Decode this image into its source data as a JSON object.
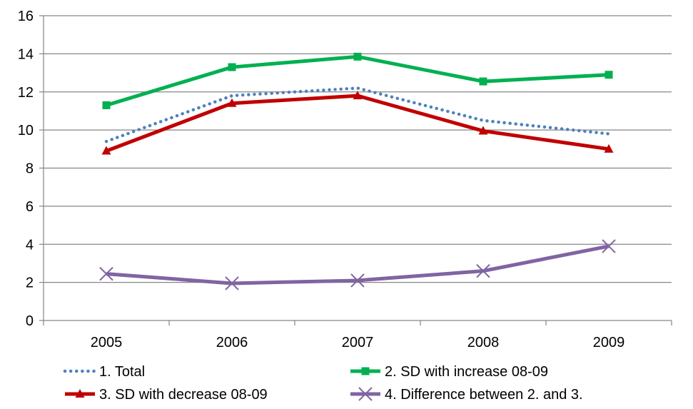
{
  "chart_data": {
    "type": "line",
    "title": "",
    "xlabel": "",
    "ylabel": "",
    "categories": [
      "2005",
      "2006",
      "2007",
      "2008",
      "2009"
    ],
    "ylim": [
      0,
      16
    ],
    "yticks": [
      0,
      2,
      4,
      6,
      8,
      10,
      12,
      14,
      16
    ],
    "grid": "horizontal",
    "legend_position": "bottom",
    "series": [
      {
        "name": "1. Total",
        "values": [
          9.4,
          11.8,
          12.2,
          10.5,
          9.8
        ],
        "color": "#4f81bd",
        "line_style": "dotted",
        "marker": "none"
      },
      {
        "name": "2. SD with increase 08-09",
        "values": [
          11.3,
          13.3,
          13.85,
          12.55,
          12.9
        ],
        "color": "#00b050",
        "line_style": "solid",
        "marker": "square"
      },
      {
        "name": "3. SD with decrease 08-09",
        "values": [
          8.9,
          11.4,
          11.8,
          9.95,
          9.0
        ],
        "color": "#c00000",
        "line_style": "solid",
        "marker": "triangle"
      },
      {
        "name": "4. Difference between 2. and 3.",
        "values": [
          2.45,
          1.95,
          2.1,
          2.6,
          3.9
        ],
        "color": "#8064a2",
        "line_style": "solid",
        "marker": "x"
      }
    ]
  }
}
